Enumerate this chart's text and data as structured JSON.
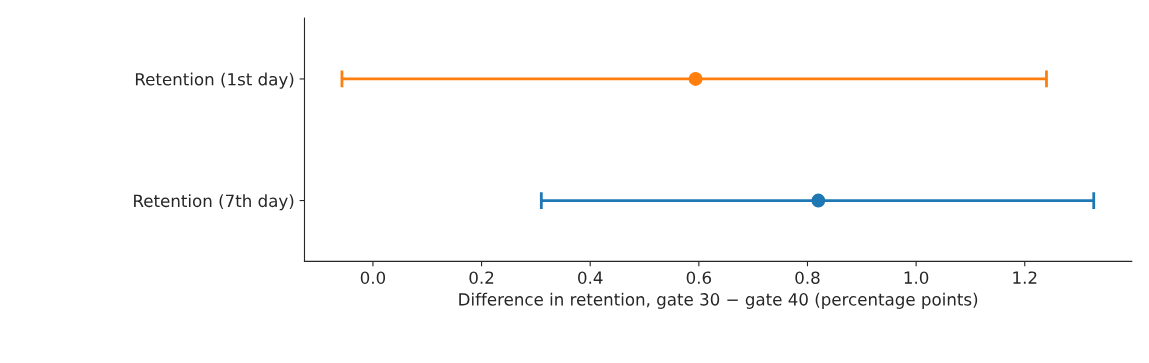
{
  "chart_data": {
    "type": "scatter",
    "orientation": "horizontal",
    "xlabel": "Difference in retention, gate 30 − gate 40 (percentage points)",
    "categories": [
      "Retention (1st day)",
      "Retention (7th day)"
    ],
    "values": [
      0.594,
      0.82
    ],
    "errors": [
      [
        -0.057,
        1.24
      ],
      [
        0.31,
        1.327
      ]
    ],
    "colors": [
      "#ff7f0e",
      "#1f77b4"
    ],
    "xlim": [
      -0.126,
      1.397
    ],
    "xticks": [
      {
        "value": 0,
        "label": "0.0"
      },
      0.2,
      0.4,
      0.6,
      0.8,
      {
        "value": 1,
        "label": "1.0"
      },
      1.2
    ],
    "marker": "circle",
    "grid": false,
    "legend": false
  }
}
